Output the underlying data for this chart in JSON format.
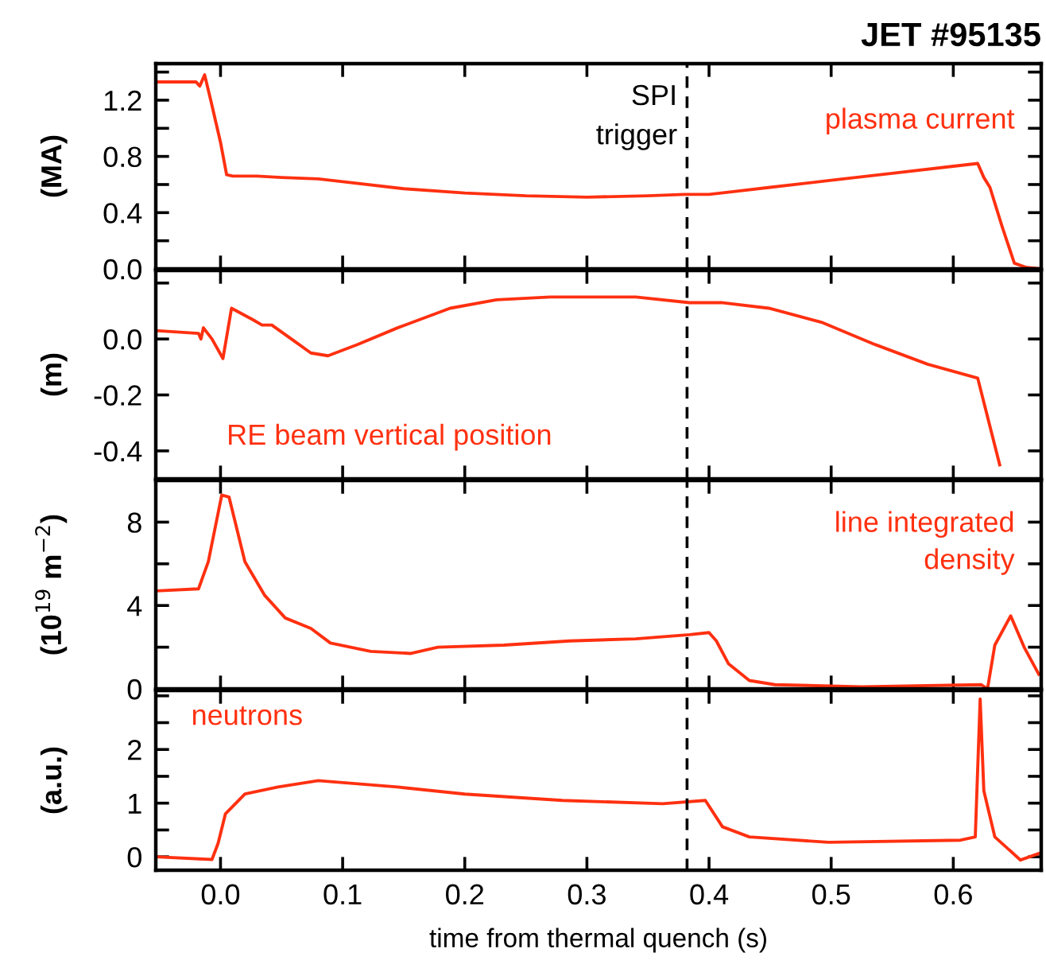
{
  "chart_data": [
    {
      "type": "line",
      "title": "JET #95135",
      "ylabel": "(MA)",
      "xlim": [
        -0.053,
        0.672
      ],
      "ylim": [
        0,
        1.46
      ],
      "xticks": [
        0,
        0.1,
        0.2,
        0.3,
        0.4,
        0.5,
        0.6
      ],
      "yticks": [
        {
          "value": 0,
          "label": "0.0"
        },
        {
          "value": 0.2,
          "label": null
        },
        0.4,
        {
          "value": 0.6,
          "label": null
        },
        0.8,
        {
          "value": 1.0,
          "label": null
        },
        1.2,
        {
          "value": 1.4,
          "label": null
        }
      ],
      "tick_labels": "y",
      "annotations": [
        "plasma current"
      ],
      "ref_lines": [
        {
          "axis": "x",
          "value": 0.382,
          "label": "SPI\ntrigger",
          "color": "#000000",
          "line_style": "dashed"
        }
      ],
      "series": [
        {
          "color": "#ff3010",
          "x": [
            -0.053,
            -0.02,
            -0.017,
            -0.013,
            -0.008,
            0.0,
            0.005,
            0.01,
            0.03,
            0.05,
            0.08,
            0.1,
            0.15,
            0.2,
            0.25,
            0.3,
            0.35,
            0.38,
            0.4,
            0.42,
            0.45,
            0.5,
            0.55,
            0.6,
            0.62,
            0.625,
            0.63,
            0.64,
            0.65,
            0.66,
            0.672
          ],
          "values": [
            1.33,
            1.33,
            1.3,
            1.38,
            1.2,
            0.9,
            0.67,
            0.66,
            0.66,
            0.65,
            0.64,
            0.62,
            0.57,
            0.54,
            0.52,
            0.51,
            0.52,
            0.53,
            0.53,
            0.55,
            0.58,
            0.63,
            0.68,
            0.73,
            0.75,
            0.65,
            0.58,
            0.3,
            0.04,
            0.01,
            0.0
          ]
        }
      ]
    },
    {
      "type": "line",
      "ylabel": "(m)",
      "xlim": [
        -0.053,
        0.672
      ],
      "ylim": [
        -0.5,
        0.245
      ],
      "xticks": [
        0,
        0.1,
        0.2,
        0.3,
        0.4,
        0.5,
        0.6
      ],
      "yticks": [
        -0.4,
        -0.2,
        {
          "value": 0,
          "label": "0.0"
        },
        {
          "value": 0.2,
          "label": null
        }
      ],
      "tick_labels": "y",
      "annotations": [
        "RE beam vertical position"
      ],
      "ref_lines": [
        {
          "axis": "x",
          "value": 0.382,
          "color": "#000000",
          "line_style": "dashed"
        }
      ],
      "series": [
        {
          "color": "#ff3010",
          "x": [
            -0.053,
            -0.018,
            -0.016,
            -0.014,
            -0.007,
            0.002,
            0.009,
            0.026,
            0.034,
            0.042,
            0.058,
            0.074,
            0.088,
            0.112,
            0.145,
            0.188,
            0.226,
            0.27,
            0.308,
            0.34,
            0.384,
            0.41,
            0.449,
            0.492,
            0.536,
            0.579,
            0.62,
            0.638
          ],
          "values": [
            0.03,
            0.02,
            0.0,
            0.04,
            0.0,
            -0.07,
            0.11,
            0.07,
            0.05,
            0.05,
            0.0,
            -0.05,
            -0.06,
            -0.02,
            0.04,
            0.11,
            0.14,
            0.15,
            0.15,
            0.15,
            0.13,
            0.13,
            0.11,
            0.06,
            -0.02,
            -0.09,
            -0.14,
            -0.45
          ]
        }
      ]
    },
    {
      "type": "line",
      "ylabel": "(10$^{19}$ m$^{−2}$)",
      "xlim": [
        -0.053,
        0.672
      ],
      "ylim": [
        0,
        10
      ],
      "xticks": [
        0,
        0.1,
        0.2,
        0.3,
        0.4,
        0.5,
        0.6
      ],
      "yticks": [
        0,
        {
          "value": 2,
          "label": null
        },
        4,
        {
          "value": 6,
          "label": null
        },
        8
      ],
      "tick_labels": "y",
      "annotations": [
        "line integrated\ndensity"
      ],
      "ref_lines": [
        {
          "axis": "x",
          "value": 0.382,
          "color": "#000000",
          "line_style": "dashed"
        }
      ],
      "series": [
        {
          "color": "#ff3010",
          "x": [
            -0.053,
            -0.018,
            -0.01,
            0.001,
            0.007,
            0.02,
            0.036,
            0.053,
            0.074,
            0.09,
            0.123,
            0.156,
            0.178,
            0.232,
            0.286,
            0.34,
            0.384,
            0.4,
            0.406,
            0.416,
            0.433,
            0.454,
            0.525,
            0.623,
            0.628,
            0.634,
            0.647,
            0.658,
            0.67
          ],
          "values": [
            4.7,
            4.8,
            6.1,
            9.3,
            9.2,
            6.1,
            4.5,
            3.4,
            2.9,
            2.2,
            1.8,
            1.7,
            2.0,
            2.1,
            2.3,
            2.4,
            2.6,
            2.7,
            2.3,
            1.2,
            0.4,
            0.2,
            0.1,
            0.2,
            0.0,
            2.1,
            3.5,
            2.0,
            0.7
          ]
        }
      ]
    },
    {
      "type": "line",
      "ylabel": "(a.u.)",
      "xlabel": "time from thermal quench (s)",
      "xlim": [
        -0.053,
        0.672
      ],
      "ylim": [
        -0.25,
        3.1
      ],
      "xticks": [
        {
          "value": 0,
          "label": "0.0"
        },
        0.1,
        0.2,
        0.3,
        0.4,
        0.5,
        0.6
      ],
      "yticks": [
        0,
        {
          "value": 0.5,
          "label": null
        },
        1,
        {
          "value": 1.5,
          "label": null
        },
        2,
        {
          "value": 2.5,
          "label": null
        },
        {
          "value": 3,
          "label": null
        }
      ],
      "annotations": [
        "neutrons"
      ],
      "ref_lines": [
        {
          "axis": "x",
          "value": 0.382,
          "color": "#000000",
          "line_style": "dashed"
        }
      ],
      "series": [
        {
          "color": "#ff3010",
          "x": [
            -0.053,
            -0.007,
            -0.002,
            0.004,
            0.02,
            0.047,
            0.08,
            0.145,
            0.2,
            0.28,
            0.362,
            0.397,
            0.411,
            0.433,
            0.498,
            0.606,
            0.618,
            0.622,
            0.625,
            0.634,
            0.655,
            0.67
          ],
          "values": [
            0.0,
            -0.05,
            0.25,
            0.8,
            1.17,
            1.3,
            1.42,
            1.3,
            1.17,
            1.05,
            0.99,
            1.05,
            0.56,
            0.37,
            0.27,
            0.31,
            0.37,
            2.94,
            1.23,
            0.37,
            -0.06,
            0.06
          ]
        }
      ]
    }
  ]
}
